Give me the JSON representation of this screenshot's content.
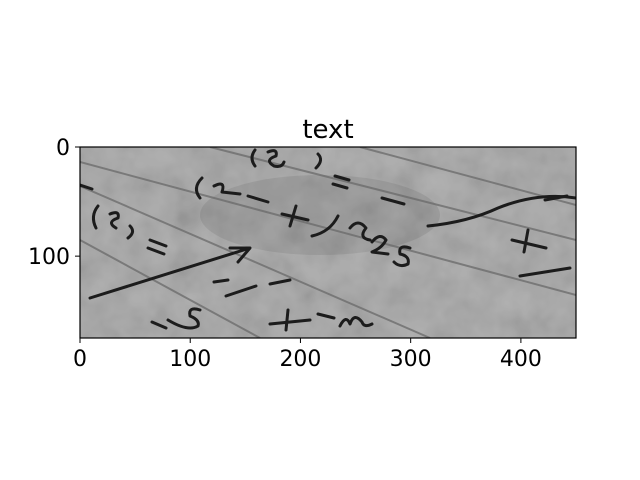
{
  "figure": {
    "title": "text",
    "image_description": "grayscale photo of handwritten math notes on lined paper",
    "x_ticks": [
      "0",
      "100",
      "200",
      "300",
      "400"
    ],
    "y_ticks": [
      "0",
      "100"
    ],
    "x_tick_values": [
      0,
      100,
      200,
      300,
      400
    ],
    "y_tick_values": [
      0,
      100
    ],
    "image_width_units": 450,
    "image_height_units": 175
  }
}
